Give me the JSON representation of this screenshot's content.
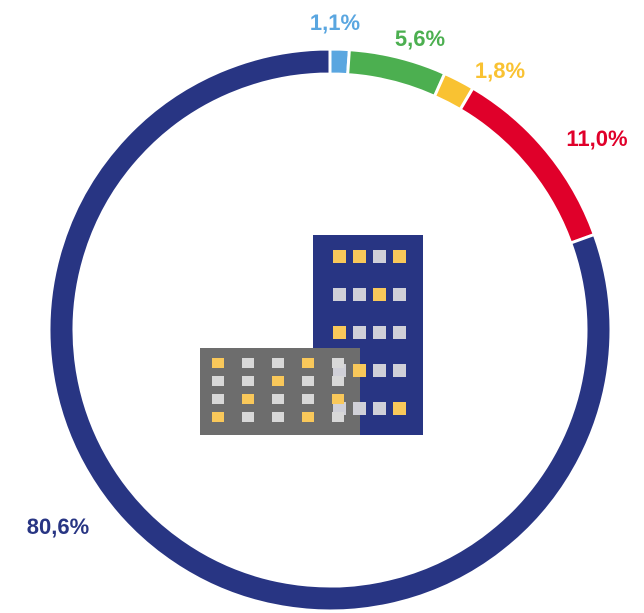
{
  "chart_data": {
    "type": "donut",
    "categories": [
      null,
      null,
      null,
      null,
      null
    ],
    "values": [
      1.1,
      5.6,
      1.8,
      11.0,
      80.6
    ],
    "value_labels": [
      "1,1%",
      "5,6%",
      "1,8%",
      "11,0%",
      "80,6%"
    ],
    "colors": [
      "#5aa6e0",
      "#4caf50",
      "#f9c232",
      "#e0002a",
      "#283583"
    ]
  }
}
